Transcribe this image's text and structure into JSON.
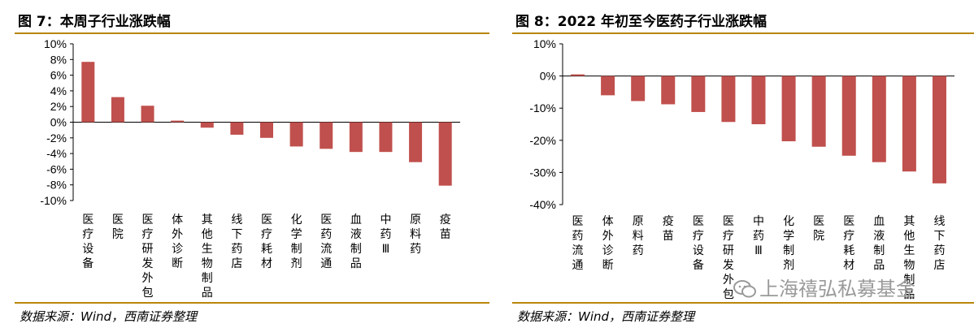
{
  "figures": [
    {
      "title": "图 7：本周子行业涨跌幅",
      "source": "数据来源：Wind，西南证券整理"
    },
    {
      "title": "图 8：2022 年初至今医药子行业涨跌幅",
      "source": "数据来源：Wind，西南证券整理"
    }
  ],
  "watermark": "上海禧弘私募基金",
  "chart_data": [
    {
      "type": "bar",
      "title": "图 7：本周子行业涨跌幅",
      "categories": [
        "医疗设备",
        "医院",
        "医疗研发外包",
        "体外诊断",
        "其他生物制品",
        "线下药店",
        "医疗耗材",
        "化学制剂",
        "医药流通",
        "血液制品",
        "中药Ⅲ",
        "原料药",
        "疫苗"
      ],
      "values": [
        7.7,
        3.2,
        2.1,
        0.2,
        -0.7,
        -1.6,
        -2.0,
        -3.1,
        -3.4,
        -3.8,
        -3.8,
        -5.1,
        -8.1
      ],
      "unit": "%",
      "ylim": [
        -10,
        10
      ],
      "yticks": [
        -10,
        -8,
        -6,
        -4,
        -2,
        0,
        2,
        4,
        6,
        8,
        10
      ],
      "ytick_labels": [
        "-10%",
        "-8%",
        "-6%",
        "-4%",
        "-2%",
        "0%",
        "2%",
        "4%",
        "6%",
        "8%",
        "10%"
      ],
      "bar_color": "#c0504d",
      "grid": false
    },
    {
      "type": "bar",
      "title": "图 8：2022 年初至今医药子行业涨跌幅",
      "categories": [
        "医药流通",
        "体外诊断",
        "原料药",
        "疫苗",
        "医疗设备",
        "医疗研发外包",
        "中药Ⅲ",
        "化学制剂",
        "医院",
        "医疗耗材",
        "血液制品",
        "其他生物制品",
        "线下药店"
      ],
      "values": [
        0.5,
        -6.0,
        -7.8,
        -8.8,
        -11.2,
        -14.3,
        -15.0,
        -20.3,
        -22.0,
        -24.8,
        -26.8,
        -29.7,
        -33.4
      ],
      "unit": "%",
      "ylim": [
        -40,
        10
      ],
      "yticks": [
        -40,
        -30,
        -20,
        -10,
        0,
        10
      ],
      "ytick_labels": [
        "-40%",
        "-30%",
        "-20%",
        "-10%",
        "0%",
        "10%"
      ],
      "bar_color": "#c0504d",
      "grid": false
    }
  ]
}
